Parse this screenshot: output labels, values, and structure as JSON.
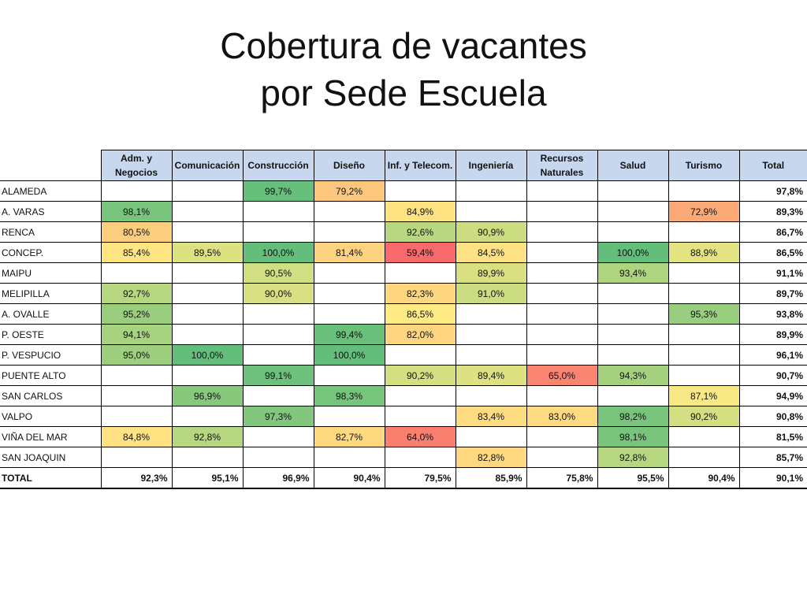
{
  "title": {
    "line1": "Cobertura de vacantes",
    "line2": "por Sede Escuela"
  },
  "colors": {
    "header_bg": "#c6d7ee",
    "scale_low": "#f8696b",
    "scale_mid": "#ffeb84",
    "scale_high": "#63be7b"
  },
  "chart_data": {
    "type": "heatmap",
    "title": "Cobertura de vacantes por Sede Escuela",
    "columns": [
      "Adm. y Negocios",
      "Comunicación",
      "Construcción",
      "Diseño",
      "Inf. y Telecom.",
      "Ingeniería",
      "Recursos Naturales",
      "Salud",
      "Turismo"
    ],
    "total_label": "Total",
    "rows": [
      {
        "name": "ALAMEDA",
        "values": [
          null,
          null,
          "99,7%",
          "79,2%",
          null,
          null,
          null,
          null,
          null
        ],
        "total": "97,8%"
      },
      {
        "name": "A. VARAS",
        "values": [
          "98,1%",
          null,
          null,
          null,
          "84,9%",
          null,
          null,
          null,
          "72,9%"
        ],
        "total": "89,3%"
      },
      {
        "name": "RENCA",
        "values": [
          "80,5%",
          null,
          null,
          null,
          "92,6%",
          "90,9%",
          null,
          null,
          null
        ],
        "total": "86,7%"
      },
      {
        "name": "CONCEP.",
        "values": [
          "85,4%",
          "89,5%",
          "100,0%",
          "81,4%",
          "59,4%",
          "84,5%",
          null,
          "100,0%",
          "88,9%"
        ],
        "total": "86,5%"
      },
      {
        "name": "MAIPU",
        "values": [
          null,
          null,
          "90,5%",
          null,
          null,
          "89,9%",
          null,
          "93,4%",
          null
        ],
        "total": "91,1%"
      },
      {
        "name": "MELIPILLA",
        "values": [
          "92,7%",
          null,
          "90,0%",
          null,
          "82,3%",
          "91,0%",
          null,
          null,
          null
        ],
        "total": "89,7%"
      },
      {
        "name": "A. OVALLE",
        "values": [
          "95,2%",
          null,
          null,
          null,
          "86,5%",
          null,
          null,
          null,
          "95,3%"
        ],
        "total": "93,8%"
      },
      {
        "name": "P. OESTE",
        "values": [
          "94,1%",
          null,
          null,
          "99,4%",
          "82,0%",
          null,
          null,
          null,
          null
        ],
        "total": "89,9%"
      },
      {
        "name": "P. VESPUCIO",
        "values": [
          "95,0%",
          "100,0%",
          null,
          "100,0%",
          null,
          null,
          null,
          null,
          null
        ],
        "total": "96,1%"
      },
      {
        "name": "PUENTE ALTO",
        "values": [
          null,
          null,
          "99,1%",
          null,
          "90,2%",
          "89,4%",
          "65,0%",
          "94,3%",
          null
        ],
        "total": "90,7%"
      },
      {
        "name": "SAN CARLOS",
        "values": [
          null,
          "96,9%",
          null,
          "98,3%",
          null,
          null,
          null,
          null,
          "87,1%"
        ],
        "total": "94,9%"
      },
      {
        "name": "VALPO",
        "values": [
          null,
          null,
          "97,3%",
          null,
          null,
          "83,4%",
          "83,0%",
          "98,2%",
          "90,2%"
        ],
        "total": "90,8%"
      },
      {
        "name": "VIÑA DEL MAR",
        "values": [
          "84,8%",
          "92,8%",
          null,
          "82,7%",
          "64,0%",
          null,
          null,
          "98,1%",
          null
        ],
        "total": "81,5%"
      },
      {
        "name": "SAN JOAQUIN",
        "values": [
          null,
          null,
          null,
          null,
          null,
          "82,8%",
          null,
          "92,8%",
          null
        ],
        "total": "85,7%"
      }
    ],
    "totals_row": {
      "name": "TOTAL",
      "values": [
        "92,3%",
        "95,1%",
        "96,9%",
        "90,4%",
        "79,5%",
        "85,9%",
        "75,8%",
        "95,5%",
        "90,4%"
      ],
      "total": "90,1%"
    }
  }
}
